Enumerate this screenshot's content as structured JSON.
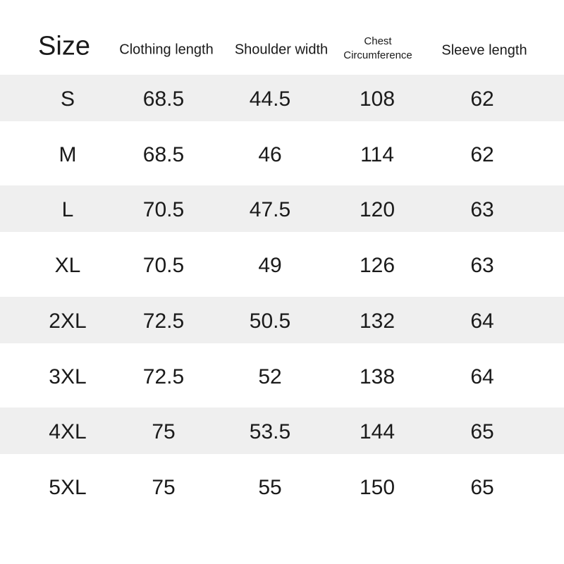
{
  "colors": {
    "stripe": "#efefef",
    "text": "#1a1a1a",
    "background": "#ffffff"
  },
  "headers": {
    "size": "Size",
    "clothing_length": "Clothing length",
    "shoulder_width": "Shoulder width",
    "chest_line1": "Chest",
    "chest_line2": "Circumference",
    "sleeve_length": "Sleeve length"
  },
  "rows": [
    [
      "S",
      "68.5",
      "44.5",
      "108",
      "62"
    ],
    [
      "M",
      "68.5",
      "46",
      "114",
      "62"
    ],
    [
      "L",
      "70.5",
      "47.5",
      "120",
      "63"
    ],
    [
      "XL",
      "70.5",
      "49",
      "126",
      "63"
    ],
    [
      "2XL",
      "72.5",
      "50.5",
      "132",
      "64"
    ],
    [
      "3XL",
      "72.5",
      "52",
      "138",
      "64"
    ],
    [
      "4XL",
      "75",
      "53.5",
      "144",
      "65"
    ],
    [
      "5XL",
      "75",
      "55",
      "150",
      "65"
    ]
  ]
}
